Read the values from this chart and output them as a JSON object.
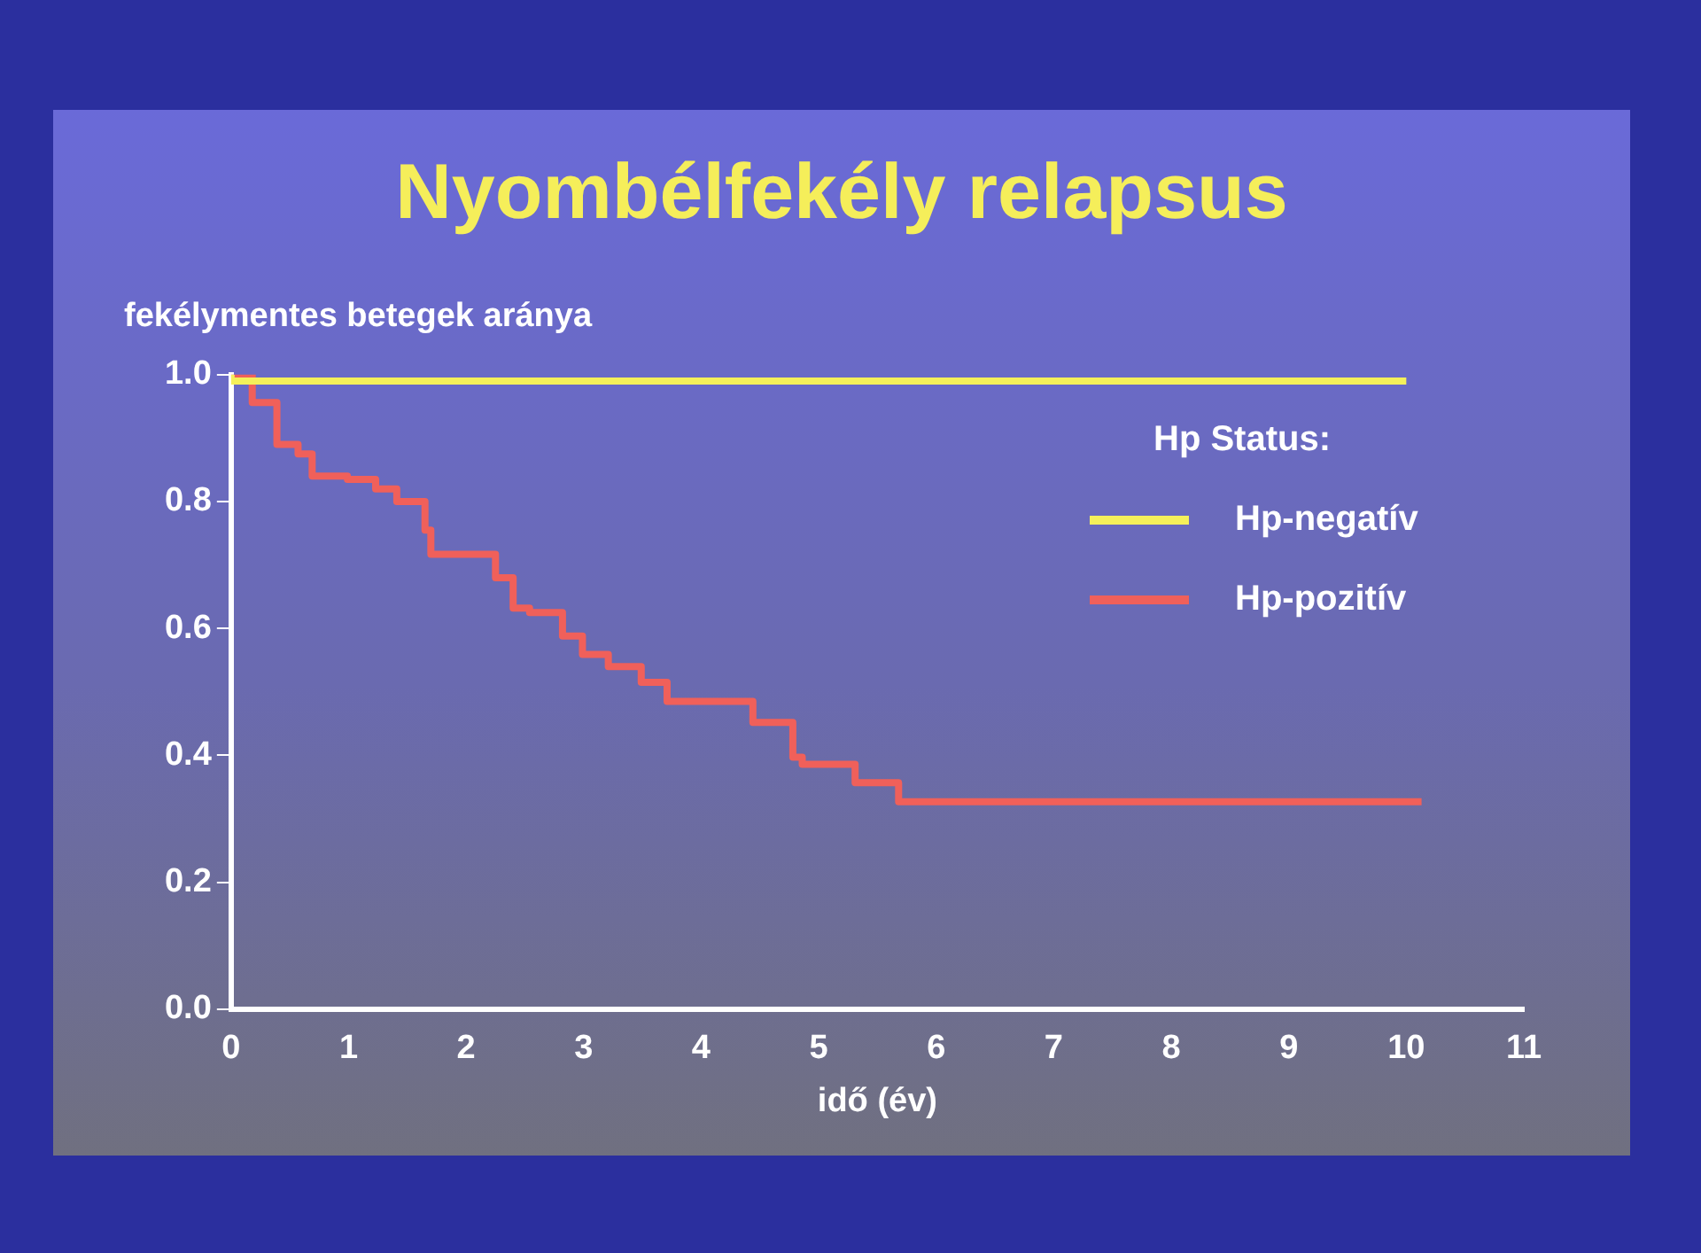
{
  "chart_data": {
    "type": "step",
    "title": "Nyombélfekély relapsus",
    "ylabel": "fekélymentes betegek aránya",
    "xlabel": "idő (év)",
    "legend_title": "Hp Status:",
    "legend": "right",
    "xlim": [
      0,
      11
    ],
    "xticks": [
      0,
      1,
      2,
      3,
      4,
      5,
      6,
      7,
      8,
      9,
      10,
      11
    ],
    "ylim": [
      0,
      1
    ],
    "yticks": [
      {
        "value": 0,
        "label": "0.0"
      },
      {
        "value": 0.2,
        "label": "0.2"
      },
      {
        "value": 0.4,
        "label": "0.4"
      },
      {
        "value": 0.6,
        "label": "0.6"
      },
      {
        "value": 0.8,
        "label": "0.8"
      },
      {
        "value": 1,
        "label": "1.0"
      }
    ],
    "grid": false,
    "marker": "none",
    "line_style": "solid",
    "series": [
      {
        "name": "Hp-negatív",
        "color": "#f5f05a",
        "x": [
          0,
          10
        ],
        "values": [
          1.0,
          0.99
        ]
      },
      {
        "name": "Hp-pozitív",
        "color": "#f0605a",
        "x": [
          0,
          0.18,
          0.39,
          0.57,
          0.69,
          0.99,
          1.23,
          1.41,
          1.65,
          1.7,
          1.78,
          2.25,
          2.4,
          2.54,
          2.82,
          2.99,
          3.21,
          3.49,
          3.71,
          4.0,
          4.44,
          4.5,
          4.78,
          4.86,
          5.31,
          5.36,
          5.68,
          5.7,
          10.13
        ],
        "values": [
          1.0,
          1.0,
          0.956,
          0.89,
          0.875,
          0.84,
          0.835,
          0.82,
          0.8,
          0.755,
          0.717,
          0.717,
          0.68,
          0.632,
          0.625,
          0.588,
          0.559,
          0.54,
          0.515,
          0.485,
          0.485,
          0.452,
          0.452,
          0.397,
          0.386,
          0.357,
          0.357,
          0.327,
          0.327
        ]
      }
    ]
  }
}
